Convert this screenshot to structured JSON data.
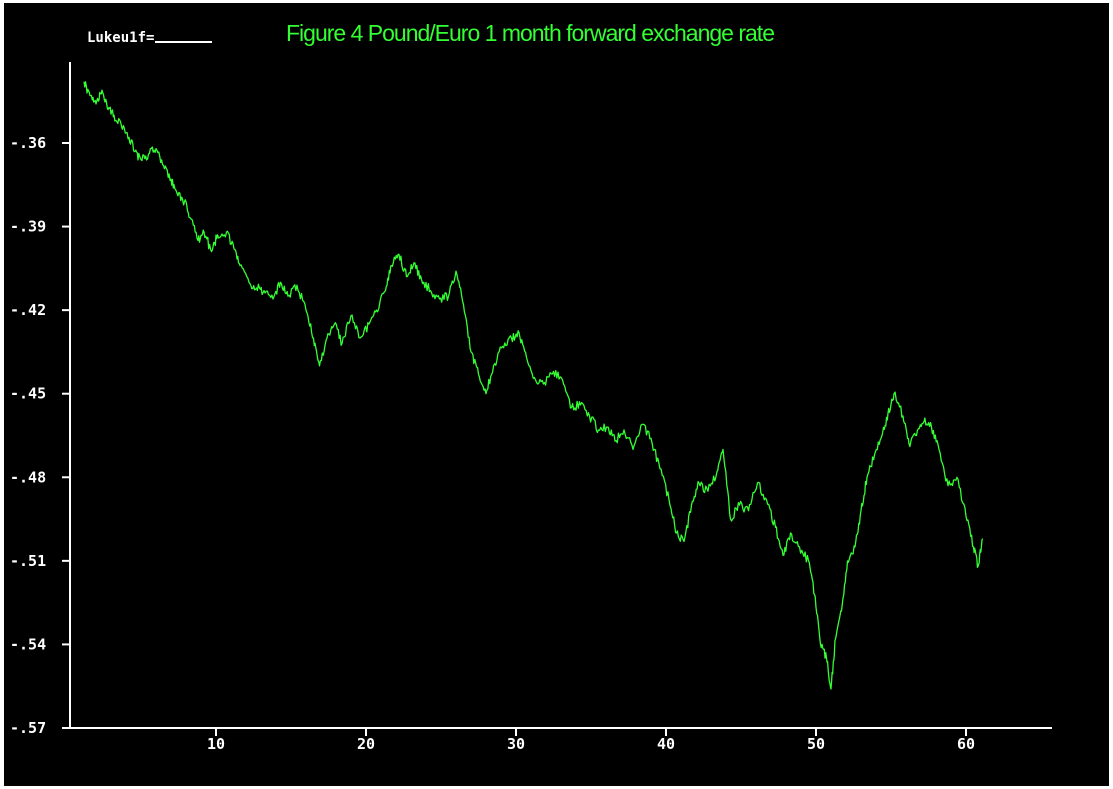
{
  "legend": {
    "key": "Lukeu1f="
  },
  "chart_data": {
    "type": "line",
    "title": "Figure 4  Pound/Euro 1 month forward  exchange rate",
    "xlabel": "",
    "ylabel": "",
    "xlim": [
      1,
      66
    ],
    "ylim": [
      -0.57,
      -0.335
    ],
    "xticks": [
      10,
      20,
      30,
      40,
      50,
      60
    ],
    "xtick_labels": [
      "10",
      "20",
      "30",
      "40",
      "50",
      "60"
    ],
    "yticks": [
      -0.36,
      -0.39,
      -0.42,
      -0.45,
      -0.48,
      -0.51,
      -0.54,
      -0.57
    ],
    "ytick_labels": [
      "-.36",
      "-.39",
      "-.42",
      "-.45",
      "-.48",
      "-.51",
      "-.54",
      "-.57"
    ],
    "grid": false,
    "legend_position": "top-left",
    "colors": {
      "background": "#000000",
      "axes": "#ffffff",
      "line": "#33ff33",
      "title": "#33ff33"
    },
    "series": [
      {
        "name": "Lukeu1f",
        "anchors": [
          [
            1.2,
            -0.338
          ],
          [
            1.6,
            -0.343
          ],
          [
            2.0,
            -0.346
          ],
          [
            2.4,
            -0.341
          ],
          [
            2.8,
            -0.348
          ],
          [
            3.2,
            -0.35
          ],
          [
            3.7,
            -0.354
          ],
          [
            4.2,
            -0.358
          ],
          [
            4.6,
            -0.363
          ],
          [
            5.0,
            -0.366
          ],
          [
            5.5,
            -0.364
          ],
          [
            6.0,
            -0.362
          ],
          [
            6.5,
            -0.368
          ],
          [
            7.0,
            -0.373
          ],
          [
            7.4,
            -0.378
          ],
          [
            7.9,
            -0.381
          ],
          [
            8.3,
            -0.387
          ],
          [
            8.8,
            -0.395
          ],
          [
            9.2,
            -0.392
          ],
          [
            9.7,
            -0.399
          ],
          [
            10.1,
            -0.393
          ],
          [
            10.7,
            -0.392
          ],
          [
            11.2,
            -0.398
          ],
          [
            11.6,
            -0.404
          ],
          [
            12.2,
            -0.41
          ],
          [
            12.7,
            -0.412
          ],
          [
            13.2,
            -0.413
          ],
          [
            13.8,
            -0.416
          ],
          [
            14.3,
            -0.41
          ],
          [
            14.8,
            -0.415
          ],
          [
            15.4,
            -0.411
          ],
          [
            16.0,
            -0.42
          ],
          [
            16.5,
            -0.43
          ],
          [
            16.9,
            -0.44
          ],
          [
            17.4,
            -0.43
          ],
          [
            17.9,
            -0.425
          ],
          [
            18.4,
            -0.432
          ],
          [
            19.0,
            -0.422
          ],
          [
            19.6,
            -0.43
          ],
          [
            20.2,
            -0.425
          ],
          [
            20.7,
            -0.42
          ],
          [
            21.3,
            -0.413
          ],
          [
            21.7,
            -0.404
          ],
          [
            22.2,
            -0.4
          ],
          [
            22.7,
            -0.408
          ],
          [
            23.2,
            -0.403
          ],
          [
            23.7,
            -0.409
          ],
          [
            24.3,
            -0.413
          ],
          [
            24.9,
            -0.416
          ],
          [
            25.5,
            -0.415
          ],
          [
            26.0,
            -0.406
          ],
          [
            26.5,
            -0.418
          ],
          [
            27.0,
            -0.435
          ],
          [
            27.5,
            -0.443
          ],
          [
            28.0,
            -0.45
          ],
          [
            28.5,
            -0.44
          ],
          [
            29.1,
            -0.433
          ],
          [
            29.7,
            -0.43
          ],
          [
            30.2,
            -0.428
          ],
          [
            30.7,
            -0.437
          ],
          [
            31.3,
            -0.445
          ],
          [
            31.9,
            -0.446
          ],
          [
            32.5,
            -0.442
          ],
          [
            33.1,
            -0.445
          ],
          [
            33.7,
            -0.455
          ],
          [
            34.3,
            -0.454
          ],
          [
            34.9,
            -0.458
          ],
          [
            35.5,
            -0.463
          ],
          [
            36.1,
            -0.462
          ],
          [
            36.6,
            -0.467
          ],
          [
            37.2,
            -0.463
          ],
          [
            37.8,
            -0.47
          ],
          [
            38.4,
            -0.461
          ],
          [
            39.0,
            -0.466
          ],
          [
            39.6,
            -0.477
          ],
          [
            40.2,
            -0.488
          ],
          [
            40.7,
            -0.5
          ],
          [
            41.2,
            -0.503
          ],
          [
            41.7,
            -0.49
          ],
          [
            42.2,
            -0.482
          ],
          [
            42.8,
            -0.485
          ],
          [
            43.4,
            -0.478
          ],
          [
            43.8,
            -0.47
          ],
          [
            44.3,
            -0.495
          ],
          [
            44.9,
            -0.49
          ],
          [
            45.5,
            -0.492
          ],
          [
            46.1,
            -0.482
          ],
          [
            46.7,
            -0.488
          ],
          [
            47.3,
            -0.498
          ],
          [
            47.8,
            -0.508
          ],
          [
            48.3,
            -0.5
          ],
          [
            48.9,
            -0.505
          ],
          [
            49.5,
            -0.51
          ],
          [
            49.9,
            -0.522
          ],
          [
            50.3,
            -0.54
          ],
          [
            50.7,
            -0.545
          ],
          [
            51.0,
            -0.556
          ],
          [
            51.3,
            -0.538
          ],
          [
            51.7,
            -0.528
          ],
          [
            52.1,
            -0.51
          ],
          [
            52.6,
            -0.505
          ],
          [
            53.0,
            -0.492
          ],
          [
            53.4,
            -0.48
          ],
          [
            53.9,
            -0.472
          ],
          [
            54.4,
            -0.465
          ],
          [
            54.8,
            -0.457
          ],
          [
            55.2,
            -0.45
          ],
          [
            55.8,
            -0.458
          ],
          [
            56.2,
            -0.468
          ],
          [
            56.7,
            -0.465
          ],
          [
            57.2,
            -0.46
          ],
          [
            57.7,
            -0.462
          ],
          [
            58.2,
            -0.47
          ],
          [
            58.8,
            -0.483
          ],
          [
            59.4,
            -0.48
          ],
          [
            60.0,
            -0.494
          ],
          [
            60.5,
            -0.505
          ],
          [
            60.8,
            -0.512
          ],
          [
            61.1,
            -0.502
          ]
        ]
      }
    ]
  }
}
